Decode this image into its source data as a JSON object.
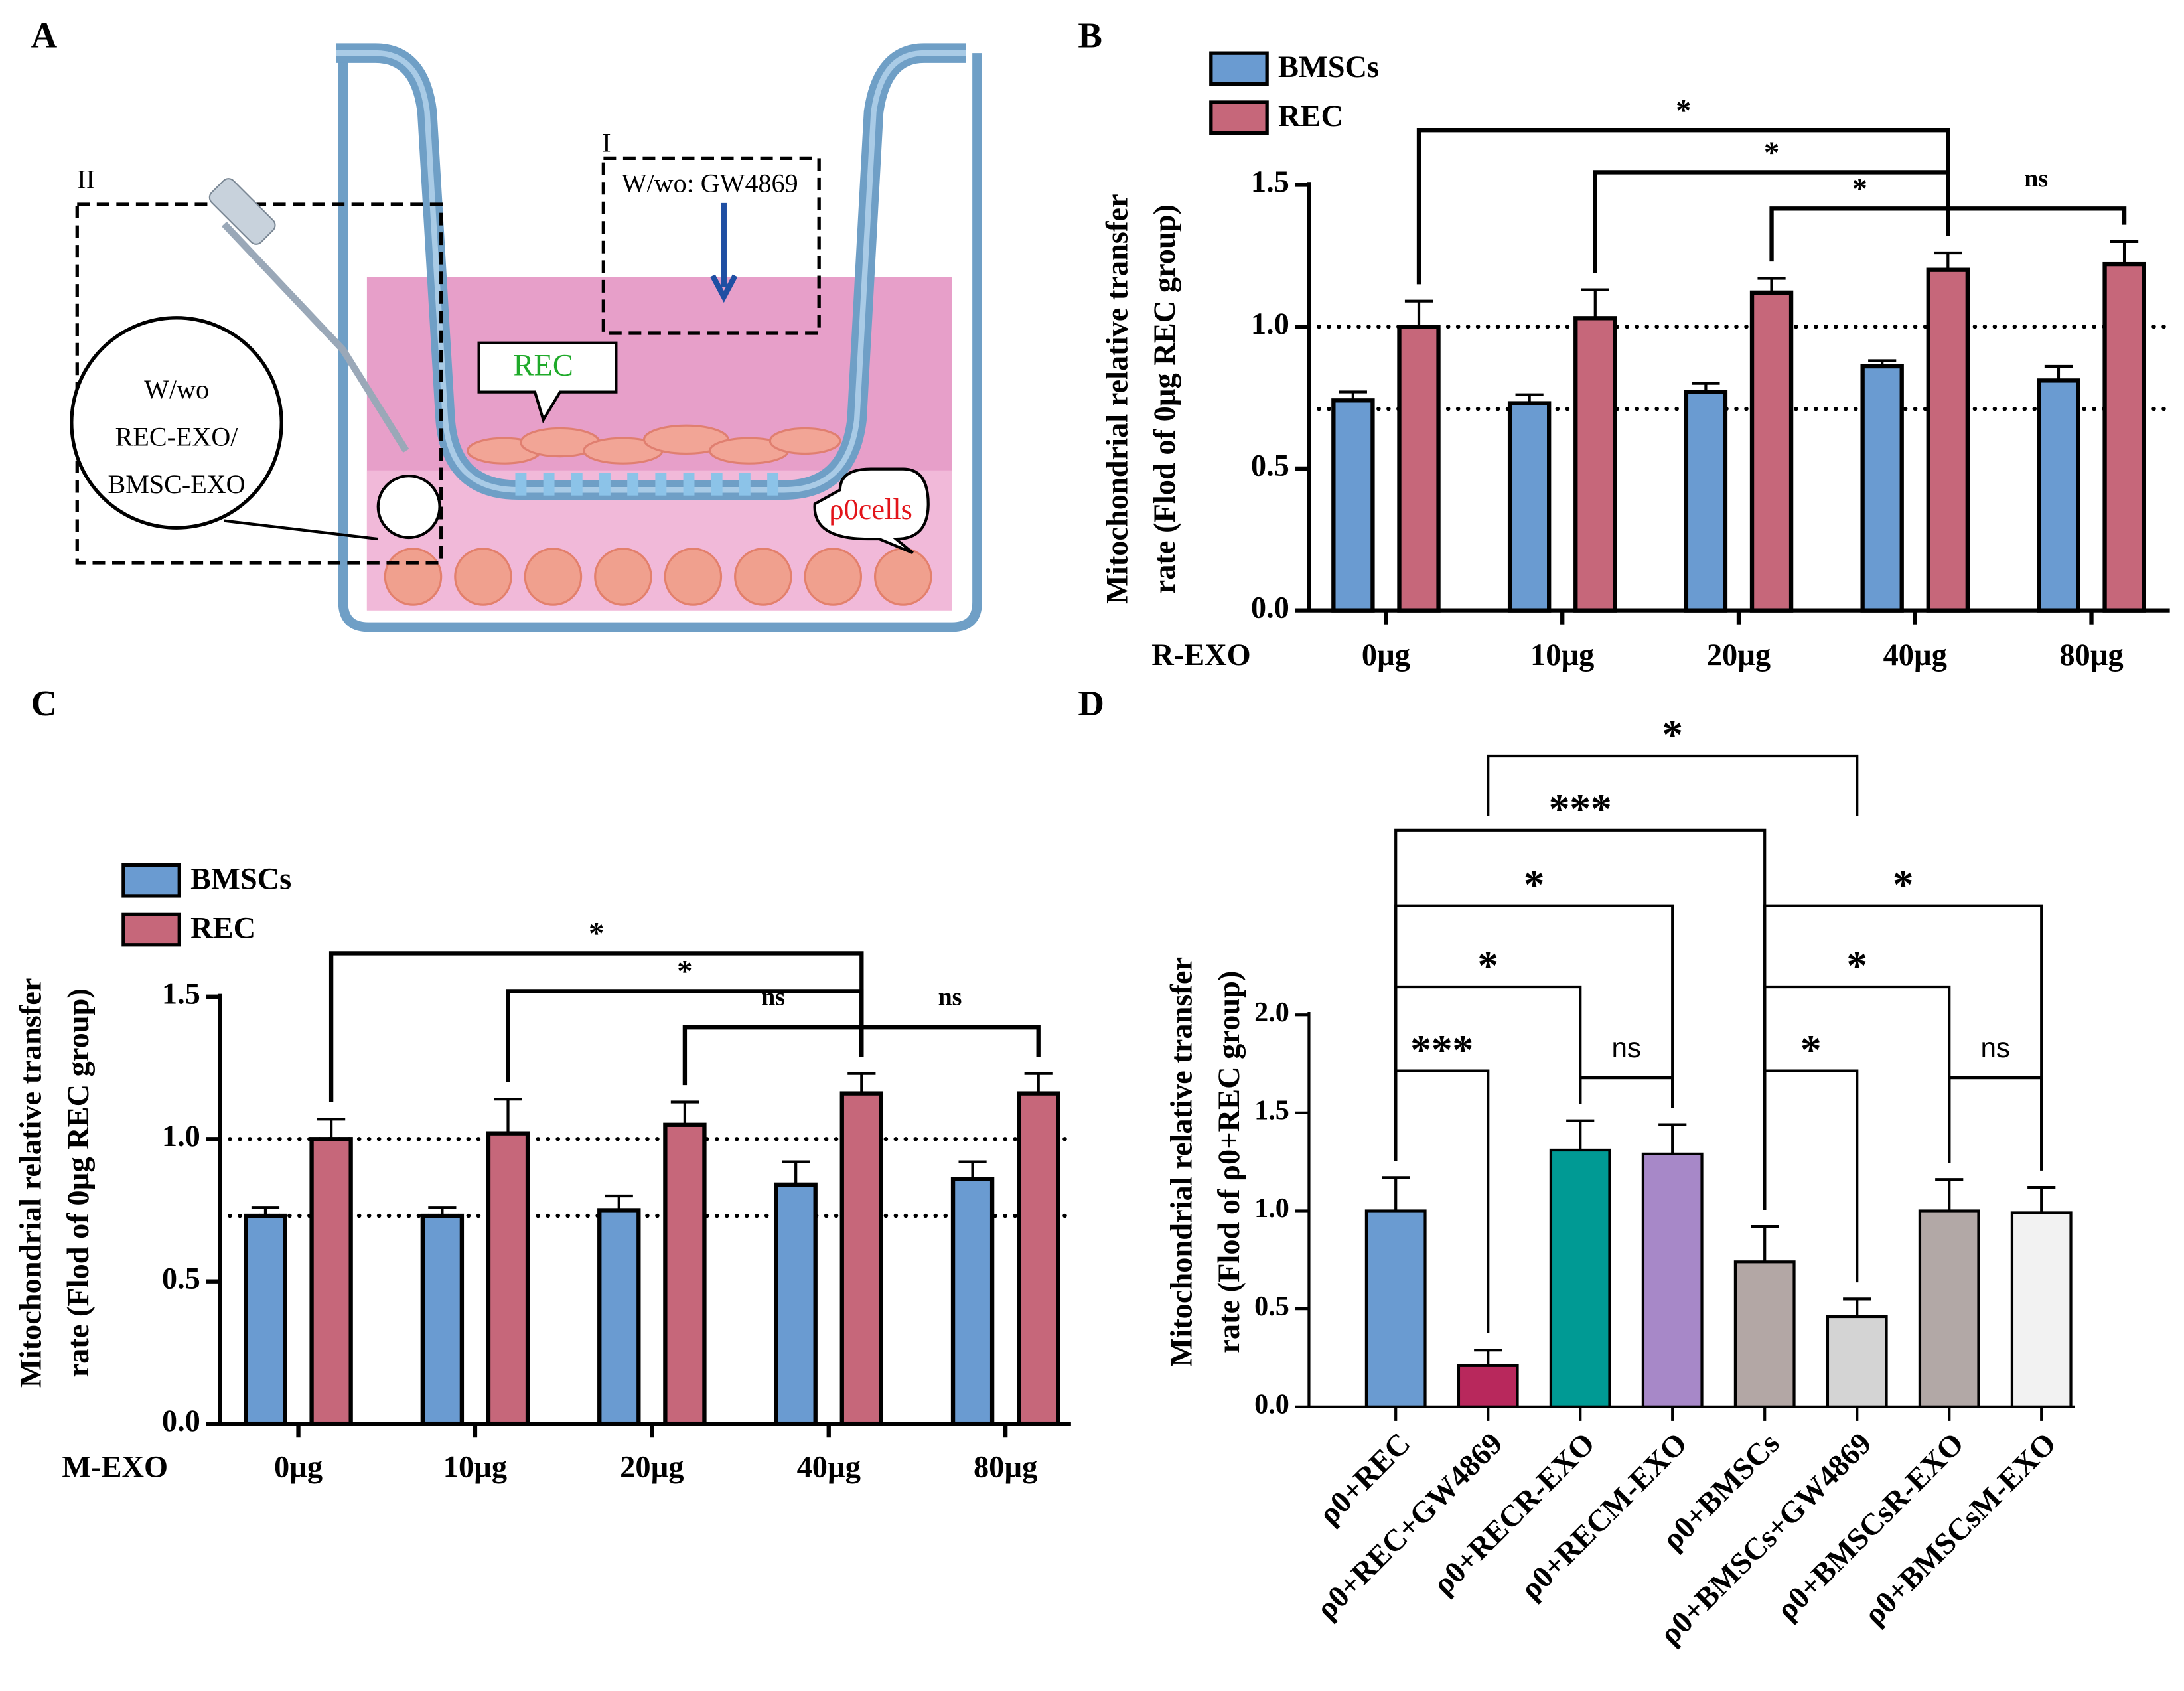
{
  "diagram": {
    "panel": "A",
    "box_i_label": "I",
    "box_i_text": "W/wo: GW4869",
    "box_ii_label": "II",
    "callout_rec": "REC",
    "circle_text": [
      "W/wo",
      "REC-EXO/",
      "BMSC-EXO"
    ],
    "callout_cells": "ρ0cells"
  },
  "chart_data": [
    {
      "type": "bar",
      "panel": "B",
      "xlabel": "R-EXO",
      "ylabel": [
        "Mitochondrial relative  transfer",
        "rate (Flod of 0µg REC group)"
      ],
      "categories": [
        "0µg",
        "10µg",
        "20µg",
        "40µg",
        "80µg"
      ],
      "series": [
        {
          "name": "BMSCs",
          "color": "#6a9bd1",
          "values": [
            0.74,
            0.73,
            0.77,
            0.86,
            0.81
          ],
          "errors": [
            0.03,
            0.03,
            0.03,
            0.02,
            0.05
          ]
        },
        {
          "name": "REC",
          "color": "#c6677a",
          "values": [
            1.0,
            1.03,
            1.12,
            1.2,
            1.22
          ],
          "errors": [
            0.09,
            0.1,
            0.05,
            0.06,
            0.08
          ]
        }
      ],
      "ylim": [
        0,
        1.5
      ],
      "yticks": [
        {
          "value": 0,
          "label": "0.0"
        },
        {
          "value": 0.5,
          "label": "0.5"
        },
        {
          "value": 1,
          "label": "1.0"
        },
        {
          "value": 1.5,
          "label": "1.5"
        }
      ],
      "reference_lines": [
        1.0,
        0.71
      ],
      "legend": "upper left",
      "annotations": [
        {
          "from": 0,
          "to": 3,
          "label": "*"
        },
        {
          "from": 1,
          "to": 3,
          "label": "*"
        },
        {
          "from": 2,
          "to": 3,
          "label": "*"
        },
        {
          "from": 3,
          "to": 4,
          "label": "ns"
        }
      ]
    },
    {
      "type": "bar",
      "panel": "C",
      "xlabel": "M-EXO",
      "ylabel": [
        "Mitochondrial relative  transfer",
        "rate (Flod of 0µg REC group)"
      ],
      "categories": [
        "0µg",
        "10µg",
        "20µg",
        "40µg",
        "80µg"
      ],
      "series": [
        {
          "name": "BMSCs",
          "color": "#6a9bd1",
          "values": [
            0.73,
            0.73,
            0.75,
            0.84,
            0.86
          ],
          "errors": [
            0.03,
            0.03,
            0.05,
            0.08,
            0.06
          ]
        },
        {
          "name": "REC",
          "color": "#c6677a",
          "values": [
            1.0,
            1.02,
            1.05,
            1.16,
            1.16
          ],
          "errors": [
            0.07,
            0.12,
            0.08,
            0.07,
            0.07
          ]
        }
      ],
      "ylim": [
        0,
        1.5
      ],
      "yticks": [
        {
          "value": 0,
          "label": "0.0"
        },
        {
          "value": 0.5,
          "label": "0.5"
        },
        {
          "value": 1,
          "label": "1.0"
        },
        {
          "value": 1.5,
          "label": "1.5"
        }
      ],
      "reference_lines": [
        1.0,
        0.73
      ],
      "legend": "upper left",
      "annotations": [
        {
          "from": 0,
          "to": 3,
          "label": "*"
        },
        {
          "from": 1,
          "to": 3,
          "label": "*"
        },
        {
          "from": 2,
          "to": 3,
          "label": "ns"
        },
        {
          "from": 3,
          "to": 4,
          "label": "ns"
        }
      ]
    },
    {
      "type": "bar",
      "panel": "D",
      "ylabel": [
        "Mitochondrial relative  transfer",
        "rate (Flod of ρ0+REC group)"
      ],
      "categories": [
        "ρ0+REC",
        "ρ0+REC+GW4869",
        "ρ0+RECR-EXO",
        "ρ0+RECM-EXO",
        "ρ0+BMSCs",
        "ρ0+BMSCs+GW4869",
        "ρ0+BMSCsR-EXO",
        "ρ0+BMSCsM-EXO"
      ],
      "values": [
        1.0,
        0.21,
        1.31,
        1.29,
        0.74,
        0.46,
        1.0,
        0.99
      ],
      "errors": [
        0.17,
        0.08,
        0.15,
        0.15,
        0.18,
        0.09,
        0.16,
        0.13
      ],
      "colors": [
        "#6a9bd1",
        "#b8285c",
        "#009a94",
        "#a788c8",
        "#b3a7a5",
        "#d4d4d4",
        "#b2a8a6",
        "#f2f2f2"
      ],
      "ylim": [
        0,
        2
      ],
      "yticks": [
        {
          "value": 0,
          "label": "0.0"
        },
        {
          "value": 0.5,
          "label": "0.5"
        },
        {
          "value": 1,
          "label": "1.0"
        },
        {
          "value": 1.5,
          "label": "1.5"
        },
        {
          "value": 2,
          "label": "2.0"
        }
      ],
      "annotations": [
        {
          "from": 0,
          "to": 1,
          "label": "***"
        },
        {
          "from": 2,
          "to": 3,
          "label": "ns"
        },
        {
          "from": 0,
          "to": 2,
          "label": "*"
        },
        {
          "from": 0,
          "to": 3,
          "label": "*"
        },
        {
          "from": 0,
          "to": 4,
          "label": "***"
        },
        {
          "from": 1,
          "to": 5,
          "label": "*"
        },
        {
          "from": 4,
          "to": 5,
          "label": "*"
        },
        {
          "from": 6,
          "to": 7,
          "label": "ns"
        },
        {
          "from": 4,
          "to": 6,
          "label": "*"
        },
        {
          "from": 4,
          "to": 7,
          "label": "*"
        }
      ]
    }
  ]
}
